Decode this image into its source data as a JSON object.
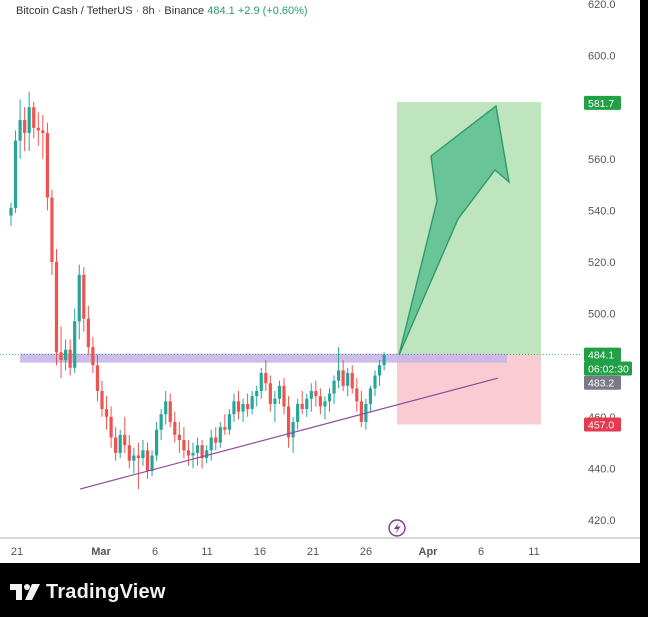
{
  "header": {
    "symbol": "Bitcoin Cash / TetherUS",
    "interval": "8h",
    "exchange": "Binance",
    "last_price": "484.1",
    "change": "+2.9 (+0.60%)"
  },
  "footer": {
    "brand": "TradingView"
  },
  "colors": {
    "up": "#26a69a",
    "down": "#ef5350",
    "target_zone": "#a8dca8",
    "stop_zone": "#f7b9c3",
    "resistance_band": "#c8b6e8",
    "trendline": "#8e4aa0",
    "arrow": "#4cb98a",
    "target_tag": "#22a045",
    "stop_tag": "#e53950",
    "current_tag": "#22a045",
    "entry_tag": "#787b86"
  },
  "chart_data": {
    "type": "candlestick",
    "title": "",
    "xlabel": "",
    "ylabel": "",
    "ylim": [
      415,
      622
    ],
    "y_ticks": [
      "420.0",
      "440.0",
      "460.0",
      "500.0",
      "520.0",
      "540.0",
      "560.0",
      "600.0",
      "620.0"
    ],
    "x_ticks": [
      "21",
      "Mar",
      "6",
      "11",
      "16",
      "21",
      "26",
      "Apr",
      "6",
      "11"
    ],
    "price_tags": {
      "target": "581.7",
      "current": "484.1",
      "countdown": "06:02:30",
      "entry": "483.2",
      "stop": "457.0"
    },
    "grid": false,
    "legend": "none",
    "series": [
      {
        "values": [
          [
            538,
            543,
            534,
            541
          ],
          [
            541,
            571,
            539,
            567
          ],
          [
            567,
            583,
            560,
            575
          ],
          [
            575,
            580,
            563,
            570
          ],
          [
            570,
            586,
            563,
            580
          ],
          [
            580,
            582,
            568,
            572
          ],
          [
            572,
            578,
            565,
            571
          ],
          [
            571,
            577,
            560,
            570
          ],
          [
            570,
            574,
            540,
            545
          ],
          [
            545,
            548,
            515,
            520
          ],
          [
            520,
            525,
            480,
            485
          ],
          [
            485,
            495,
            475,
            482
          ],
          [
            482,
            490,
            478,
            486
          ],
          [
            486,
            490,
            476,
            479
          ],
          [
            479,
            502,
            477,
            497
          ],
          [
            497,
            519,
            490,
            515
          ],
          [
            515,
            518,
            493,
            498
          ],
          [
            498,
            503,
            484,
            487
          ],
          [
            487,
            491,
            477,
            480
          ],
          [
            480,
            484,
            466,
            470
          ],
          [
            470,
            474,
            460,
            463
          ],
          [
            463,
            468,
            455,
            460
          ],
          [
            460,
            464,
            448,
            452
          ],
          [
            452,
            456,
            443,
            446
          ],
          [
            446,
            455,
            444,
            453
          ],
          [
            453,
            460,
            446,
            449
          ],
          [
            449,
            453,
            440,
            443
          ],
          [
            443,
            448,
            438,
            445
          ],
          [
            445,
            450,
            432,
            444
          ],
          [
            444,
            451,
            441,
            447
          ],
          [
            447,
            450,
            436,
            439
          ],
          [
            439,
            447,
            437,
            445
          ],
          [
            445,
            458,
            443,
            455
          ],
          [
            455,
            463,
            451,
            461
          ],
          [
            461,
            470,
            457,
            466
          ],
          [
            466,
            469,
            456,
            458
          ],
          [
            458,
            462,
            450,
            453
          ],
          [
            453,
            458,
            446,
            451
          ],
          [
            451,
            456,
            444,
            447
          ],
          [
            447,
            451,
            441,
            445
          ],
          [
            445,
            450,
            440,
            446
          ],
          [
            446,
            452,
            441,
            449
          ],
          [
            449,
            451,
            440,
            444
          ],
          [
            444,
            449,
            442,
            447
          ],
          [
            447,
            455,
            443,
            452
          ],
          [
            452,
            456,
            447,
            450
          ],
          [
            450,
            458,
            448,
            456
          ],
          [
            456,
            461,
            453,
            455
          ],
          [
            455,
            463,
            453,
            461
          ],
          [
            461,
            469,
            458,
            466
          ],
          [
            466,
            470,
            459,
            462
          ],
          [
            462,
            467,
            458,
            465
          ],
          [
            465,
            469,
            460,
            463
          ],
          [
            463,
            470,
            461,
            468
          ],
          [
            468,
            472,
            464,
            470
          ],
          [
            470,
            479,
            467,
            477
          ],
          [
            477,
            482,
            470,
            473
          ],
          [
            473,
            476,
            462,
            465
          ],
          [
            465,
            470,
            458,
            467
          ],
          [
            467,
            474,
            465,
            472
          ],
          [
            472,
            475,
            461,
            464
          ],
          [
            464,
            468,
            448,
            452
          ],
          [
            452,
            460,
            446,
            458
          ],
          [
            458,
            467,
            455,
            465
          ],
          [
            465,
            470,
            461,
            463
          ],
          [
            463,
            469,
            460,
            467
          ],
          [
            467,
            473,
            462,
            470
          ],
          [
            470,
            474,
            464,
            468
          ],
          [
            468,
            471,
            461,
            464
          ],
          [
            464,
            468,
            459,
            466
          ],
          [
            466,
            471,
            462,
            469
          ],
          [
            469,
            476,
            465,
            474
          ],
          [
            474,
            487,
            471,
            478
          ],
          [
            478,
            482,
            470,
            472
          ],
          [
            472,
            479,
            468,
            477
          ],
          [
            477,
            480,
            469,
            471
          ],
          [
            471,
            475,
            462,
            466
          ],
          [
            466,
            470,
            456,
            458
          ],
          [
            458,
            467,
            455,
            465
          ],
          [
            465,
            472,
            462,
            471
          ],
          [
            471,
            478,
            468,
            476
          ],
          [
            476,
            482,
            472,
            480
          ],
          [
            480,
            485,
            478,
            484
          ]
        ]
      }
    ],
    "annotations": {
      "resistance_band": [
        481,
        484.5
      ],
      "trendline": [
        [
          0.1,
          432
        ],
        [
          1.0,
          475
        ]
      ],
      "target_zone": [
        484,
        582
      ],
      "stop_zone": [
        457,
        484
      ]
    }
  }
}
